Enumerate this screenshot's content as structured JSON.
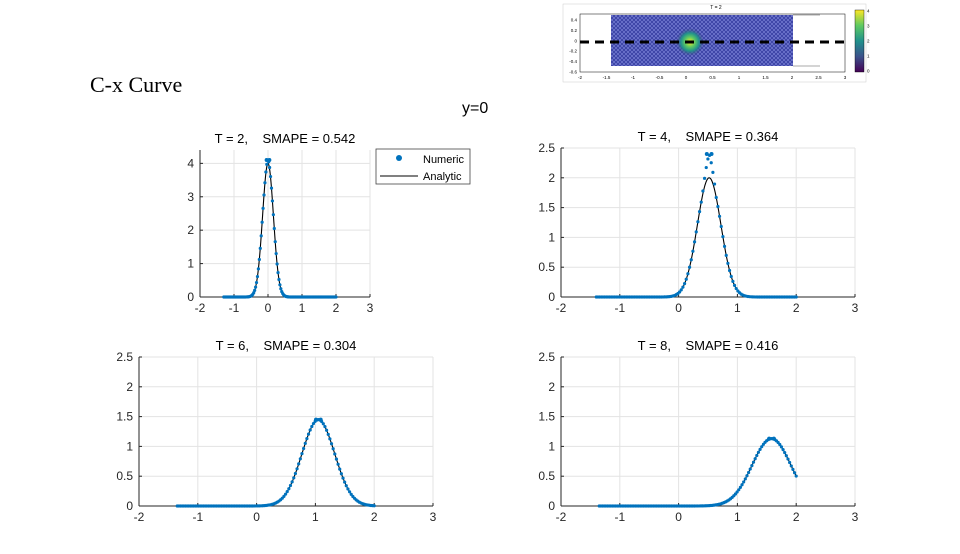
{
  "slide": {
    "title": "C-x Curve",
    "subtitle": "y=0"
  },
  "inset": {
    "title": "T = 2",
    "x_ticks": [
      "-2",
      "-1.5",
      "-1",
      "-0.5",
      "0",
      "0.5",
      "1",
      "1.5",
      "2",
      "2.5",
      "3"
    ],
    "y_ticks": [
      "0.4",
      "0.2",
      "0",
      "-0.2",
      "-0.4",
      "-0.6"
    ],
    "colorbar_ticks": [
      "4",
      "3",
      "2",
      "1",
      "0"
    ]
  },
  "legend": {
    "numeric": "Numeric",
    "analytic": "Analytic"
  },
  "colors": {
    "numeric": "#0072bd",
    "analytic": "#000000",
    "grid": "#e3e3e3"
  },
  "chart_data": [
    {
      "type": "line",
      "title": "T = 2,    SMAPE = 0.542",
      "t": 2,
      "mu": 0.0,
      "sigma": 0.16,
      "amp": 4.0,
      "xlim": [
        -2,
        3
      ],
      "ylim": [
        0,
        4.4
      ],
      "xticks": [
        -2,
        -1,
        0,
        1,
        2,
        3
      ],
      "yticks": [
        0,
        1,
        2,
        3,
        4
      ],
      "numeric_peak": 4.1,
      "x_range": [
        -1.3,
        2.0
      ],
      "grid": true,
      "legend": "top-right"
    },
    {
      "type": "line",
      "title": "T = 4,    SMAPE = 0.364",
      "t": 4,
      "mu": 0.52,
      "sigma": 0.2,
      "amp": 2.0,
      "xlim": [
        -2,
        3
      ],
      "ylim": [
        0,
        2.5
      ],
      "xticks": [
        -2,
        -1,
        0,
        1,
        2,
        3
      ],
      "yticks": [
        0,
        0.5,
        1,
        1.5,
        2,
        2.5
      ],
      "numeric_peak": 2.4,
      "x_range": [
        -1.4,
        2.0
      ],
      "grid": true
    },
    {
      "type": "line",
      "title": "T = 6,    SMAPE = 0.304",
      "t": 6,
      "mu": 1.05,
      "sigma": 0.28,
      "amp": 1.44,
      "xlim": [
        -2,
        3
      ],
      "ylim": [
        0,
        2.5
      ],
      "xticks": [
        -2,
        -1,
        0,
        1,
        2,
        3
      ],
      "yticks": [
        0,
        0.5,
        1,
        1.5,
        2,
        2.5
      ],
      "numeric_peak": 1.45,
      "x_range": [
        -1.35,
        2.0
      ],
      "grid": true
    },
    {
      "type": "line",
      "title": "T = 8,    SMAPE = 0.416",
      "t": 8,
      "mu": 1.58,
      "sigma": 0.33,
      "amp": 1.13,
      "xlim": [
        -2,
        3
      ],
      "ylim": [
        0,
        2.5
      ],
      "xticks": [
        -2,
        -1,
        0,
        1,
        2,
        3
      ],
      "yticks": [
        0,
        0.5,
        1,
        1.5,
        2,
        2.5
      ],
      "numeric_peak": 1.13,
      "x_range": [
        -1.35,
        2.0
      ],
      "grid": true
    }
  ]
}
